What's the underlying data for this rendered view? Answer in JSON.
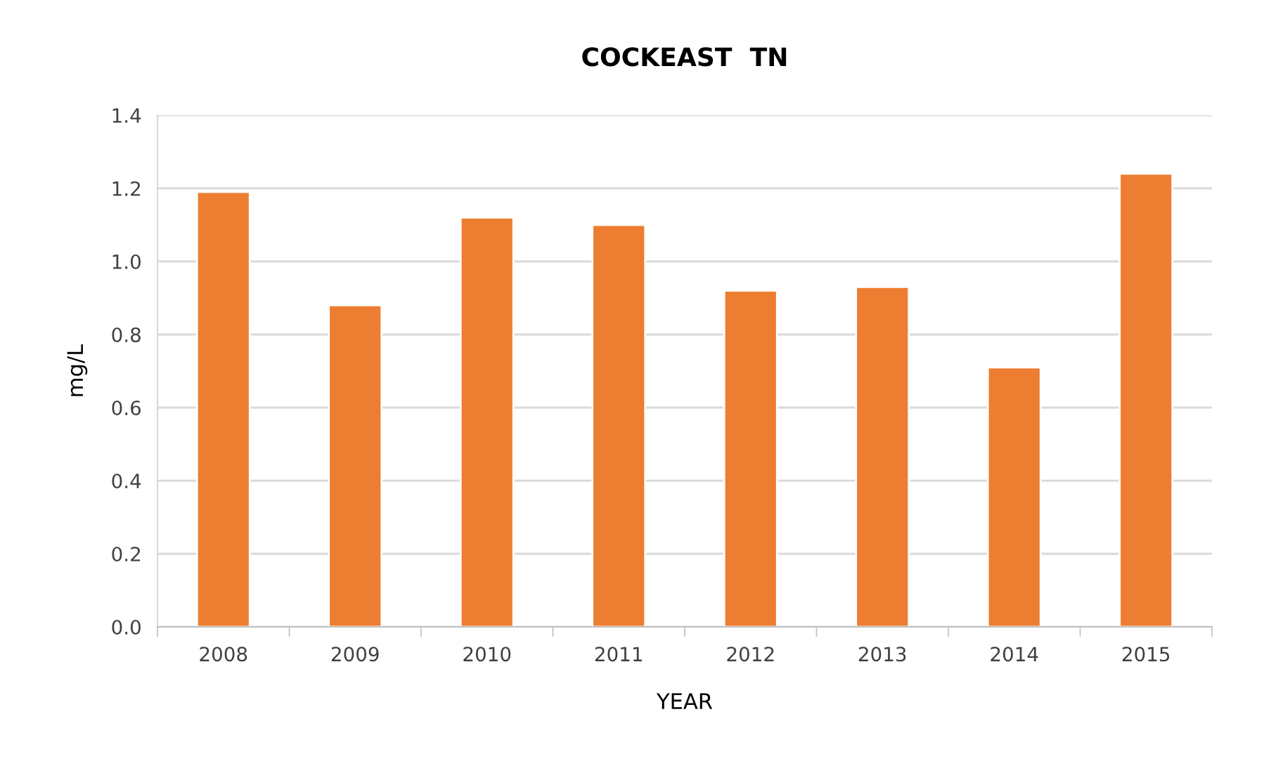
{
  "chart_data": {
    "type": "bar",
    "title": "COCKEAST  TN",
    "xlabel": "YEAR",
    "ylabel": "mg/L",
    "categories": [
      "2008",
      "2009",
      "2010",
      "2011",
      "2012",
      "2013",
      "2014",
      "2015"
    ],
    "values": [
      1.19,
      0.88,
      1.12,
      1.1,
      0.92,
      0.93,
      0.71,
      1.24
    ],
    "color": "#ed7d31",
    "ylim": [
      0,
      1.4
    ],
    "yticks": [
      {
        "value": 0,
        "label": "0.0"
      },
      {
        "value": 0.2,
        "label": "0.2"
      },
      {
        "value": 0.4,
        "label": "0.4"
      },
      {
        "value": 0.6,
        "label": "0.6"
      },
      {
        "value": 0.8,
        "label": "0.8"
      },
      {
        "value": 1.0,
        "label": "1.0"
      },
      {
        "value": 1.2,
        "label": "1.2"
      },
      {
        "value": 1.4,
        "label": "1.4"
      }
    ],
    "grid": "y"
  }
}
